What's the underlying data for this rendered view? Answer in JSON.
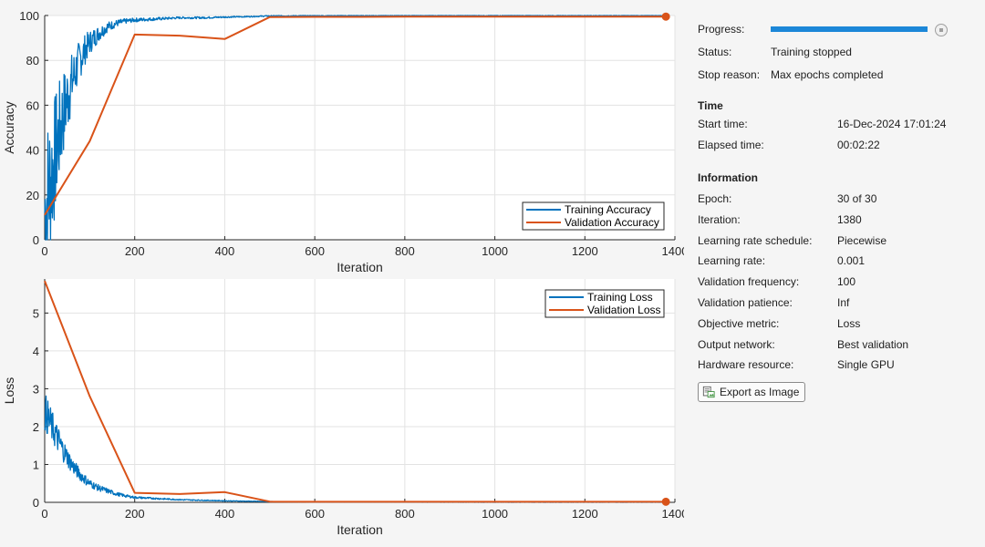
{
  "chart_data": [
    {
      "type": "line",
      "title": "",
      "xlabel": "Iteration",
      "ylabel": "Accuracy",
      "xlim": [
        0,
        1400
      ],
      "ylim": [
        0,
        100
      ],
      "xticks": [
        "0",
        "200",
        "400",
        "600",
        "800",
        "1000",
        "1200",
        "1400"
      ],
      "yticks": [
        "0",
        "20",
        "40",
        "60",
        "80",
        "100"
      ],
      "grid": true,
      "legend_position": "bottom-right",
      "series": [
        {
          "name": "Training Accuracy",
          "color": "#0072bd",
          "noisy": true,
          "x": [
            0,
            10,
            20,
            30,
            40,
            50,
            60,
            70,
            80,
            90,
            100,
            120,
            140,
            160,
            180,
            200,
            250,
            300,
            350,
            400,
            450,
            500,
            600,
            800,
            1000,
            1200,
            1380
          ],
          "y": [
            12,
            24,
            34,
            45,
            55,
            63,
            70,
            76,
            81,
            85,
            88,
            92,
            95,
            96.5,
            97.5,
            98,
            98.5,
            99,
            99,
            99.3,
            99.5,
            99.8,
            99.9,
            100,
            100,
            100,
            100
          ]
        },
        {
          "name": "Validation Accuracy",
          "color": "#d95319",
          "noisy": false,
          "x": [
            0,
            100,
            200,
            300,
            400,
            500,
            600,
            700,
            800,
            900,
            1000,
            1100,
            1200,
            1300,
            1380
          ],
          "y": [
            11,
            44,
            91.5,
            91,
            89.5,
            99.3,
            99.4,
            99.4,
            99.5,
            99.5,
            99.5,
            99.5,
            99.5,
            99.5,
            99.5
          ]
        }
      ]
    },
    {
      "type": "line",
      "title": "",
      "xlabel": "Iteration",
      "ylabel": "Loss",
      "xlim": [
        0,
        1400
      ],
      "ylim": [
        0,
        5.9
      ],
      "xticks": [
        "0",
        "200",
        "400",
        "600",
        "800",
        "1000",
        "1200",
        "1400"
      ],
      "yticks": [
        "0",
        "1",
        "2",
        "3",
        "4",
        "5"
      ],
      "grid": true,
      "legend_position": "top-right",
      "series": [
        {
          "name": "Training Loss",
          "color": "#0072bd",
          "noisy": true,
          "x": [
            0,
            10,
            20,
            30,
            40,
            50,
            60,
            70,
            80,
            90,
            100,
            120,
            140,
            160,
            180,
            200,
            250,
            300,
            400,
            500,
            600,
            800,
            1000,
            1200,
            1380
          ],
          "y": [
            2.4,
            2.15,
            1.9,
            1.65,
            1.4,
            1.2,
            1.0,
            0.85,
            0.72,
            0.6,
            0.5,
            0.38,
            0.3,
            0.22,
            0.17,
            0.13,
            0.1,
            0.07,
            0.04,
            0.02,
            0.01,
            0.005,
            0.003,
            0.002,
            0.002
          ]
        },
        {
          "name": "Validation Loss",
          "color": "#d95319",
          "noisy": false,
          "x": [
            0,
            100,
            200,
            300,
            400,
            500,
            600,
            700,
            800,
            900,
            1000,
            1100,
            1200,
            1300,
            1380
          ],
          "y": [
            5.85,
            2.8,
            0.25,
            0.22,
            0.27,
            0.02,
            0.015,
            0.015,
            0.015,
            0.015,
            0.015,
            0.015,
            0.015,
            0.015,
            0.015
          ]
        }
      ]
    }
  ],
  "panel": {
    "progress_label": "Progress:",
    "progress_fraction": 1.0,
    "status_label": "Status:",
    "status_value": "Training stopped",
    "stop_reason_label": "Stop reason:",
    "stop_reason_value": "Max epochs completed",
    "time_heading": "Time",
    "start_time_label": "Start time:",
    "start_time_value": "16-Dec-2024 17:01:24",
    "elapsed_time_label": "Elapsed time:",
    "elapsed_time_value": "00:02:22",
    "information_heading": "Information",
    "info": [
      {
        "label": "Epoch:",
        "value": "30 of 30"
      },
      {
        "label": "Iteration:",
        "value": "1380"
      },
      {
        "label": "Learning rate schedule:",
        "value": "Piecewise"
      },
      {
        "label": "Learning rate:",
        "value": "0.001"
      },
      {
        "label": "Validation frequency:",
        "value": "100"
      },
      {
        "label": "Validation patience:",
        "value": "Inf"
      },
      {
        "label": "Objective metric:",
        "value": "Loss"
      },
      {
        "label": "Output network:",
        "value": "Best validation"
      },
      {
        "label": "Hardware resource:",
        "value": "Single GPU"
      }
    ],
    "export_label": "Export as Image",
    "export_icon": "export-image-icon",
    "stop_icon": "stop-icon"
  }
}
